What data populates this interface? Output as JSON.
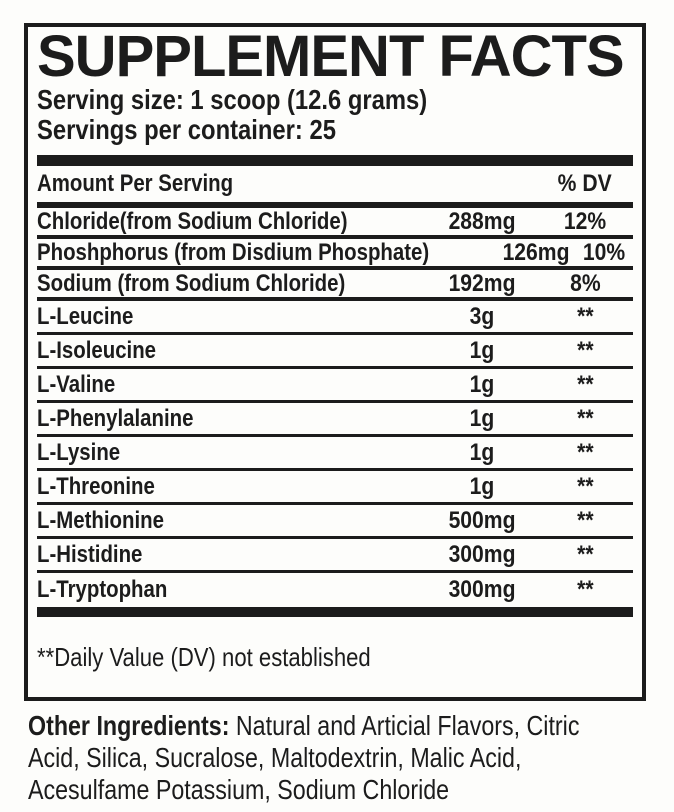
{
  "label": {
    "title": "SUPPLEMENT FACTS",
    "serving_size": "Serving size: 1 scoop (12.6 grams)",
    "servings_per_container": "Servings per container: 25",
    "table": {
      "header": {
        "amount_label": "Amount Per Serving",
        "dv_label": "% DV"
      },
      "rows": [
        {
          "name": "Chloride(from Sodium Chloride)",
          "amount": "288mg",
          "dv": "12%"
        },
        {
          "name": "Phoshphorus (from Disdium Phosphate)",
          "amount": "126mg",
          "dv": "10%"
        },
        {
          "name": "Sodium (from Sodium Chloride)",
          "amount": "192mg",
          "dv": "8%"
        },
        {
          "name": "L-Leucine",
          "amount": "3g",
          "dv": "**"
        },
        {
          "name": "L-Isoleucine",
          "amount": "1g",
          "dv": "**"
        },
        {
          "name": "L-Valine",
          "amount": "1g",
          "dv": "**"
        },
        {
          "name": "L-Phenylalanine",
          "amount": "1g",
          "dv": "**"
        },
        {
          "name": "L-Lysine",
          "amount": "1g",
          "dv": "**"
        },
        {
          "name": "L-Threonine",
          "amount": "1g",
          "dv": "**"
        },
        {
          "name": "L-Methionine",
          "amount": "500mg",
          "dv": "**"
        },
        {
          "name": "L-Histidine",
          "amount": "300mg",
          "dv": "**"
        },
        {
          "name": "L-Tryptophan",
          "amount": "300mg",
          "dv": "**"
        }
      ],
      "footnote": "**Daily Value (DV) not established"
    }
  },
  "other_ingredients": {
    "label": "Other Ingredients:",
    "lines": [
      "Natural and Articial Flavors, Citric",
      "Acid, Silica, Sucralose, Maltodextrin,  Malic Acid,",
      "Acesulfame Potassium, Sodium Chloride"
    ]
  },
  "colors": {
    "ink": "#1c1c1c",
    "background": "#fdfdfb"
  }
}
